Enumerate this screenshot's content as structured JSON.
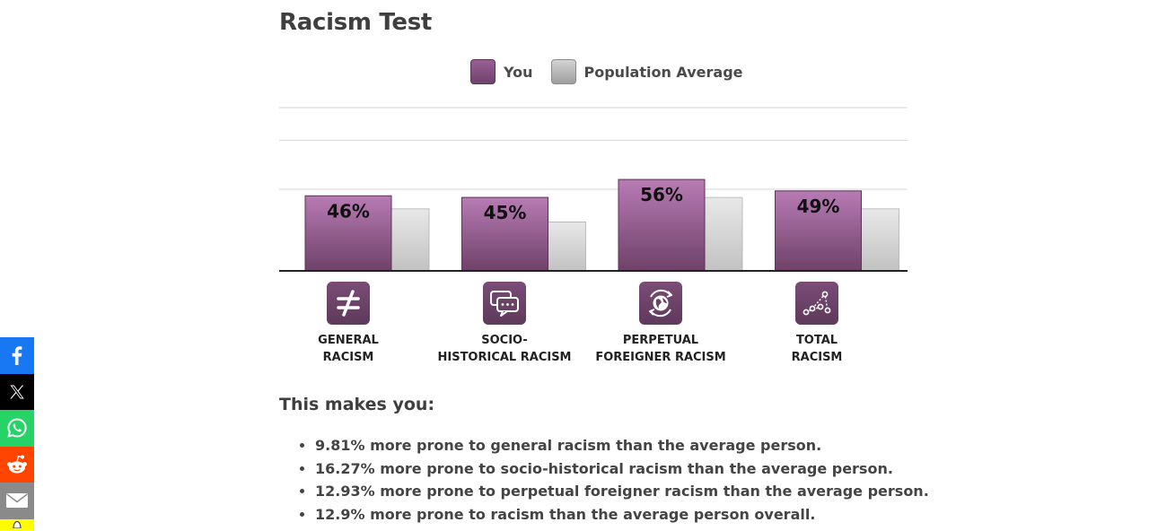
{
  "page": {
    "title": "Racism Test",
    "subhead": "This makes you:"
  },
  "legend": {
    "you": "You",
    "avg": "Population Average"
  },
  "colors": {
    "you_top": "#b87bb4",
    "you_bottom": "#6e4268",
    "avg_top": "#e6e6e6",
    "avg_bottom": "#c4c4c4",
    "axis": "#222222",
    "grid": "#d6d6d6"
  },
  "chart_data": {
    "type": "bar",
    "categories": [
      "GENERAL RACISM",
      "SOCIO-HISTORICAL RACISM",
      "PERPETUAL FOREIGNER RACISM",
      "TOTAL RACISM"
    ],
    "series": [
      {
        "name": "You",
        "values": [
          46,
          45,
          56,
          49
        ],
        "labels": [
          "46%",
          "45%",
          "56%",
          "49%"
        ]
      },
      {
        "name": "Population Average",
        "values": [
          38,
          30,
          45,
          38
        ]
      }
    ],
    "ylim": [
      0,
      100
    ],
    "grid": true,
    "legend_position": "top-center"
  },
  "categories": [
    {
      "label": "GENERAL\nRACISM",
      "icon": "not-equal-icon"
    },
    {
      "label": "SOCIO-\nHISTORICAL RACISM",
      "icon": "speech-bubbles-icon"
    },
    {
      "label": "PERPETUAL\nFOREIGNER RACISM",
      "icon": "globe-rotate-icon"
    },
    {
      "label": "TOTAL\nRACISM",
      "icon": "scatter-plot-icon"
    }
  ],
  "results": [
    "9.81% more prone to general racism than the average person.",
    "16.27% more prone to socio-historical racism than the average person.",
    "12.93% more prone to perpetual foreigner racism than the average person.",
    "12.9% more prone to racism than the average person overall."
  ],
  "share": [
    {
      "icon": "facebook-icon",
      "color": "#1877f2"
    },
    {
      "icon": "x-icon",
      "color": "#000000"
    },
    {
      "icon": "whatsapp-icon",
      "color": "#25d366"
    },
    {
      "icon": "reddit-icon",
      "color": "#ff4500"
    },
    {
      "icon": "email-icon",
      "color": "#8a8a8a"
    },
    {
      "icon": "snapchat-icon",
      "color": "#fffc00"
    }
  ]
}
